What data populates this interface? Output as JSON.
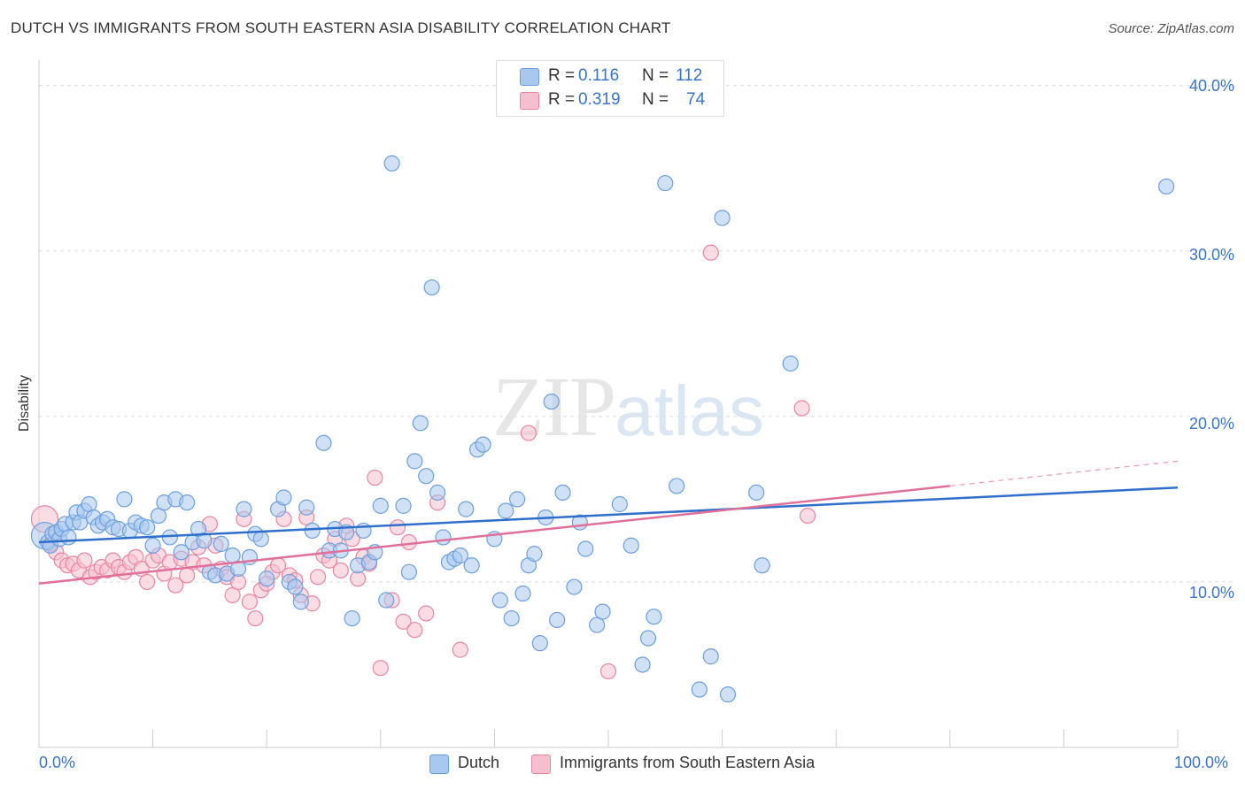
{
  "title": "DUTCH VS IMMIGRANTS FROM SOUTH EASTERN ASIA DISABILITY CORRELATION CHART",
  "source": "Source: ZipAtlas.com",
  "watermark": {
    "zip": "ZIP",
    "atlas": "atlas"
  },
  "legend_top": [
    {
      "r_label": "R =",
      "r_value": "0.116",
      "n_label": "N =",
      "n_value": "112"
    },
    {
      "r_label": "R =",
      "r_value": "0.319",
      "n_label": "N =",
      "n_value": "74"
    }
  ],
  "legend_bottom": [
    "Dutch",
    "Immigrants from South Eastern Asia"
  ],
  "colors": {
    "dutch_fill": "#a9c8ef",
    "dutch_stroke": "#6d9fdc",
    "dutch_line": "#2f6fcb",
    "asia_fill": "#f6bfd0",
    "asia_stroke": "#e8869f",
    "asia_line": "#e0709a",
    "tick_text": "#3a74c4"
  },
  "chart_data": {
    "type": "scatter",
    "title": "DUTCH VS IMMIGRANTS FROM SOUTH EASTERN ASIA DISABILITY CORRELATION CHART",
    "xlabel": "",
    "ylabel": "Disability",
    "xlim": [
      0,
      100
    ],
    "ylim": [
      0,
      41
    ],
    "x_tick_labels": [
      "0.0%",
      "100.0%"
    ],
    "y_ticks": [
      10,
      20,
      30,
      40
    ],
    "y_tick_labels": [
      "10.0%",
      "20.0%",
      "30.0%",
      "40.0%"
    ],
    "grid": true,
    "legend": "top-center",
    "series": [
      {
        "name": "Dutch",
        "r": 0.116,
        "n": 112,
        "trend": {
          "x0": 0,
          "y0": 12.4,
          "x1": 100,
          "y1": 15.7
        },
        "points": [
          [
            0.5,
            12.8
          ],
          [
            0.8,
            12.4
          ],
          [
            1.0,
            12.2
          ],
          [
            1.2,
            12.9
          ],
          [
            1.5,
            13.0
          ],
          [
            1.8,
            12.6
          ],
          [
            2.0,
            13.2
          ],
          [
            2.3,
            13.5
          ],
          [
            2.6,
            12.7
          ],
          [
            3.0,
            13.6
          ],
          [
            3.3,
            14.2
          ],
          [
            3.6,
            13.6
          ],
          [
            4.0,
            14.3
          ],
          [
            4.4,
            14.7
          ],
          [
            4.8,
            13.9
          ],
          [
            5.2,
            13.4
          ],
          [
            5.6,
            13.6
          ],
          [
            6.0,
            13.8
          ],
          [
            6.5,
            13.3
          ],
          [
            7.0,
            13.2
          ],
          [
            7.5,
            15.0
          ],
          [
            8.0,
            13.1
          ],
          [
            8.5,
            13.6
          ],
          [
            9.0,
            13.4
          ],
          [
            9.5,
            13.3
          ],
          [
            10.0,
            12.2
          ],
          [
            10.5,
            14.0
          ],
          [
            11.0,
            14.8
          ],
          [
            11.5,
            12.7
          ],
          [
            12.0,
            15.0
          ],
          [
            12.5,
            11.8
          ],
          [
            13.0,
            14.8
          ],
          [
            13.5,
            12.4
          ],
          [
            14.0,
            13.2
          ],
          [
            14.5,
            12.5
          ],
          [
            15.0,
            10.6
          ],
          [
            15.5,
            10.4
          ],
          [
            16.0,
            12.3
          ],
          [
            16.5,
            10.5
          ],
          [
            17.0,
            11.6
          ],
          [
            17.5,
            10.8
          ],
          [
            18.0,
            14.4
          ],
          [
            18.5,
            11.5
          ],
          [
            19.0,
            12.9
          ],
          [
            19.5,
            12.6
          ],
          [
            20.0,
            10.2
          ],
          [
            21.0,
            14.4
          ],
          [
            21.5,
            15.1
          ],
          [
            22.0,
            10.0
          ],
          [
            22.5,
            9.7
          ],
          [
            23.0,
            8.8
          ],
          [
            23.5,
            14.5
          ],
          [
            24.0,
            13.1
          ],
          [
            25.0,
            18.4
          ],
          [
            25.5,
            11.9
          ],
          [
            26.0,
            13.2
          ],
          [
            26.5,
            11.9
          ],
          [
            27.0,
            13.0
          ],
          [
            27.5,
            7.8
          ],
          [
            28.0,
            11.0
          ],
          [
            28.5,
            13.1
          ],
          [
            29.0,
            11.2
          ],
          [
            29.5,
            11.8
          ],
          [
            30.0,
            14.6
          ],
          [
            30.5,
            8.9
          ],
          [
            31.0,
            35.3
          ],
          [
            32.0,
            14.6
          ],
          [
            32.5,
            10.6
          ],
          [
            33.0,
            17.3
          ],
          [
            33.5,
            19.6
          ],
          [
            34.0,
            16.4
          ],
          [
            34.5,
            27.8
          ],
          [
            35.0,
            15.4
          ],
          [
            35.5,
            12.7
          ],
          [
            36.0,
            11.2
          ],
          [
            36.5,
            11.4
          ],
          [
            37.0,
            11.6
          ],
          [
            37.5,
            14.4
          ],
          [
            38.0,
            11.0
          ],
          [
            38.5,
            18.0
          ],
          [
            39.0,
            18.3
          ],
          [
            40.0,
            12.6
          ],
          [
            40.5,
            8.9
          ],
          [
            41.0,
            14.3
          ],
          [
            41.5,
            7.8
          ],
          [
            42.0,
            15.0
          ],
          [
            42.5,
            9.3
          ],
          [
            43.0,
            11.0
          ],
          [
            43.5,
            11.7
          ],
          [
            44.0,
            6.3
          ],
          [
            44.5,
            13.9
          ],
          [
            45.0,
            20.9
          ],
          [
            45.5,
            7.7
          ],
          [
            46.0,
            15.4
          ],
          [
            47.0,
            9.7
          ],
          [
            47.5,
            13.6
          ],
          [
            48.0,
            12.0
          ],
          [
            49.0,
            7.4
          ],
          [
            49.5,
            8.2
          ],
          [
            51.0,
            14.7
          ],
          [
            52.0,
            12.2
          ],
          [
            53.0,
            5.0
          ],
          [
            53.5,
            6.6
          ],
          [
            54.0,
            7.9
          ],
          [
            55.0,
            34.1
          ],
          [
            56.0,
            15.8
          ],
          [
            58.0,
            3.5
          ],
          [
            59.0,
            5.5
          ],
          [
            60.0,
            32.0
          ],
          [
            60.5,
            3.2
          ],
          [
            63.0,
            15.4
          ],
          [
            63.5,
            11.0
          ],
          [
            66.0,
            23.2
          ],
          [
            99.0,
            33.9
          ]
        ]
      },
      {
        "name": "Immigrants from South Eastern Asia",
        "r": 0.319,
        "n": 74,
        "trend": {
          "x0": 0,
          "y0": 9.9,
          "x1": 80,
          "y1": 15.8,
          "dash_to_x": 100,
          "dash_to_y": 17.3
        },
        "points": [
          [
            0.5,
            13.8
          ],
          [
            1.0,
            12.3
          ],
          [
            1.5,
            11.8
          ],
          [
            2.0,
            11.3
          ],
          [
            2.5,
            11.0
          ],
          [
            3.0,
            11.1
          ],
          [
            3.5,
            10.7
          ],
          [
            4.0,
            11.3
          ],
          [
            4.5,
            10.3
          ],
          [
            5.0,
            10.6
          ],
          [
            5.5,
            10.9
          ],
          [
            6.0,
            10.7
          ],
          [
            6.5,
            11.3
          ],
          [
            7.0,
            10.9
          ],
          [
            7.5,
            10.6
          ],
          [
            8.0,
            11.2
          ],
          [
            8.5,
            11.5
          ],
          [
            9.0,
            10.8
          ],
          [
            9.5,
            10.0
          ],
          [
            10.0,
            11.3
          ],
          [
            10.5,
            11.6
          ],
          [
            11.0,
            10.5
          ],
          [
            11.5,
            11.2
          ],
          [
            12.0,
            9.8
          ],
          [
            12.5,
            11.4
          ],
          [
            13.0,
            10.4
          ],
          [
            13.5,
            11.2
          ],
          [
            14.0,
            12.1
          ],
          [
            14.5,
            11.0
          ],
          [
            15.0,
            13.5
          ],
          [
            15.5,
            12.2
          ],
          [
            16.0,
            10.8
          ],
          [
            16.5,
            10.3
          ],
          [
            17.0,
            9.2
          ],
          [
            17.5,
            10.0
          ],
          [
            18.0,
            13.8
          ],
          [
            18.5,
            8.8
          ],
          [
            19.0,
            7.8
          ],
          [
            19.5,
            9.5
          ],
          [
            20.0,
            9.9
          ],
          [
            20.5,
            10.6
          ],
          [
            21.0,
            11.0
          ],
          [
            21.5,
            13.8
          ],
          [
            22.0,
            10.4
          ],
          [
            22.5,
            10.1
          ],
          [
            23.0,
            9.2
          ],
          [
            23.5,
            13.9
          ],
          [
            24.0,
            8.7
          ],
          [
            24.5,
            10.3
          ],
          [
            25.0,
            11.6
          ],
          [
            25.5,
            11.3
          ],
          [
            26.0,
            12.6
          ],
          [
            26.5,
            10.7
          ],
          [
            27.0,
            13.4
          ],
          [
            27.5,
            12.6
          ],
          [
            28.0,
            10.2
          ],
          [
            28.5,
            11.5
          ],
          [
            29.0,
            11.1
          ],
          [
            29.5,
            16.3
          ],
          [
            30.0,
            4.8
          ],
          [
            31.0,
            8.9
          ],
          [
            31.5,
            13.3
          ],
          [
            32.0,
            7.6
          ],
          [
            32.5,
            12.4
          ],
          [
            33.0,
            7.1
          ],
          [
            34.0,
            8.1
          ],
          [
            35.0,
            14.8
          ],
          [
            37.0,
            5.9
          ],
          [
            43.0,
            19.0
          ],
          [
            50.0,
            4.6
          ],
          [
            59.0,
            29.9
          ],
          [
            67.0,
            20.5
          ],
          [
            67.5,
            14.0
          ]
        ]
      }
    ]
  }
}
